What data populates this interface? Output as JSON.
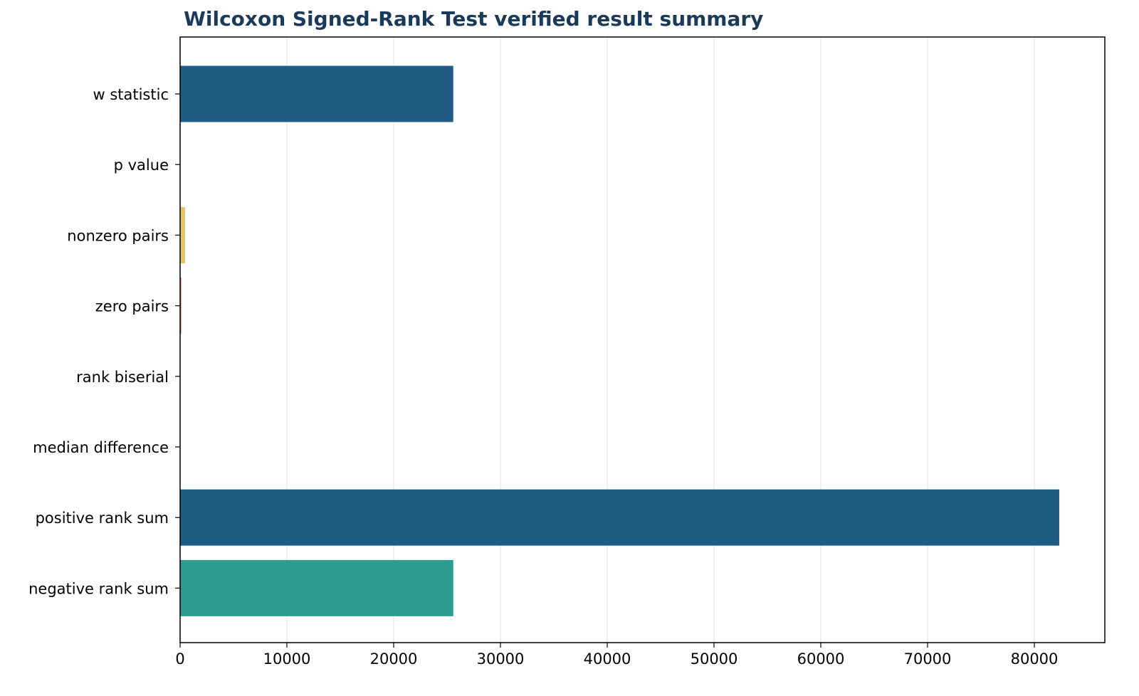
{
  "chart_data": {
    "type": "bar",
    "orientation": "horizontal",
    "title": "Wilcoxon Signed-Rank Test verified result summary",
    "xlabel": "",
    "ylabel": "",
    "categories": [
      "w statistic",
      "p value",
      "nonzero pairs",
      "zero pairs",
      "rank biserial",
      "median difference",
      "positive rank sum",
      "negative rank sum"
    ],
    "values": [
      25580,
      1e-06,
      470,
      100,
      0.53,
      0.2,
      82330,
      25580
    ],
    "colors": [
      "#1f5b82",
      "#1f5b82",
      "#e6c46a",
      "#d9534f",
      "#1f5b82",
      "#1f5b82",
      "#1f5b82",
      "#2a9d8f"
    ],
    "xlim": [
      0,
      86600
    ],
    "xticks": [
      0,
      10000,
      20000,
      30000,
      40000,
      50000,
      60000,
      70000,
      80000
    ],
    "grid": "x"
  }
}
